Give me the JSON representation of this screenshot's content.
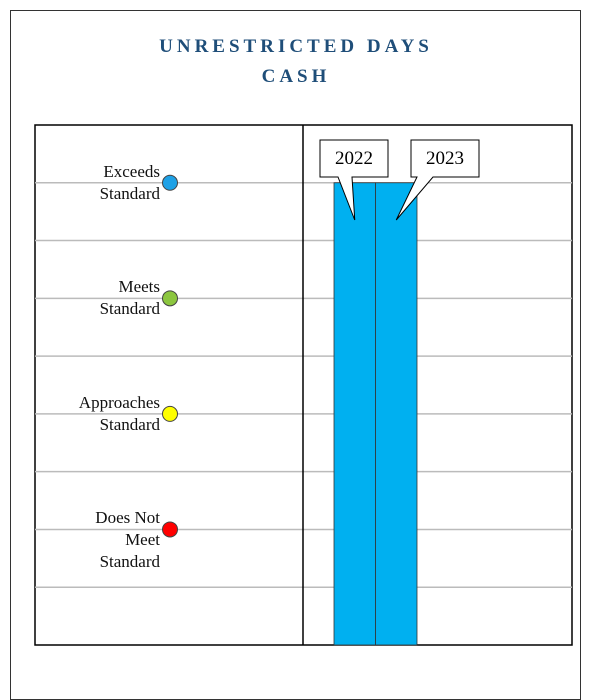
{
  "chart_data": {
    "type": "bar",
    "title": "UNRESTRICTED DAYS\nCASH",
    "categories": [
      "2022",
      "2023"
    ],
    "values": [
      8,
      8
    ],
    "color": "#00b0f0",
    "ylim": [
      0,
      9
    ],
    "yticks": [
      1,
      2,
      3,
      4,
      5,
      6,
      7,
      8
    ],
    "grid": true,
    "levels": [
      {
        "label": "Exceeds\nStandard",
        "value": 8,
        "color": "#1ea1e6"
      },
      {
        "label": "Meets\nStandard",
        "value": 6,
        "color": "#8cc63f"
      },
      {
        "label": "Approaches\nStandard",
        "value": 4,
        "color": "#ffff00"
      },
      {
        "label": "Does Not\nMeet\nStandard",
        "value": 2,
        "color": "#ff0000"
      }
    ]
  }
}
